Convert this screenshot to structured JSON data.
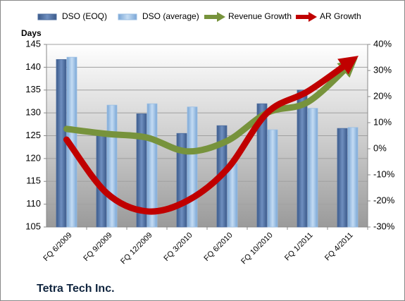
{
  "chart_data": {
    "type": "bar-line",
    "title": "Tetra Tech Inc.",
    "y_axis_label": "Days",
    "categories": [
      "FQ 6/2009",
      "FQ 9/2009",
      "FQ 12/2009",
      "FQ 3/2010",
      "FQ 6/2010",
      "FQ 10/2010",
      "FQ 1/2011",
      "FQ 4/2011"
    ],
    "series": [
      {
        "name": "DSO (EOQ)",
        "type": "bar",
        "color": "#4f6fa0",
        "values": [
          141.7,
          125,
          129.8,
          125.5,
          127.2,
          132,
          135,
          126.6
        ]
      },
      {
        "name": "DSO (average)",
        "type": "bar",
        "color": "#9bbfe3",
        "values": [
          142.2,
          131.7,
          132,
          131.3,
          118.9,
          126.3,
          131,
          126.8
        ]
      },
      {
        "name": "Revenue Growth",
        "type": "line",
        "axis": "y2",
        "color": "#77933c",
        "values": [
          7.6,
          5.7,
          4.3,
          -1,
          3,
          13.8,
          17.8,
          31.4
        ]
      },
      {
        "name": "AR Growth",
        "type": "line",
        "axis": "y2",
        "color": "#c00000",
        "values": [
          3.5,
          -17,
          -24,
          -20,
          -7.8,
          13.8,
          21.9,
          32.7
        ]
      }
    ],
    "ylim": [
      105,
      145
    ],
    "yticks": [
      105,
      110,
      115,
      120,
      125,
      130,
      135,
      140,
      145
    ],
    "y2lim": [
      -30,
      40
    ],
    "y2ticks": [
      {
        "value": -30,
        "label": "-30%"
      },
      {
        "value": -20,
        "label": "-20%"
      },
      {
        "value": -10,
        "label": "-10%"
      },
      {
        "value": 0,
        "label": "0%"
      },
      {
        "value": 10,
        "label": "10%"
      },
      {
        "value": 20,
        "label": "20%"
      },
      {
        "value": 30,
        "label": "30%"
      },
      {
        "value": 40,
        "label": "40%"
      }
    ],
    "grid": true,
    "legend": "top"
  }
}
